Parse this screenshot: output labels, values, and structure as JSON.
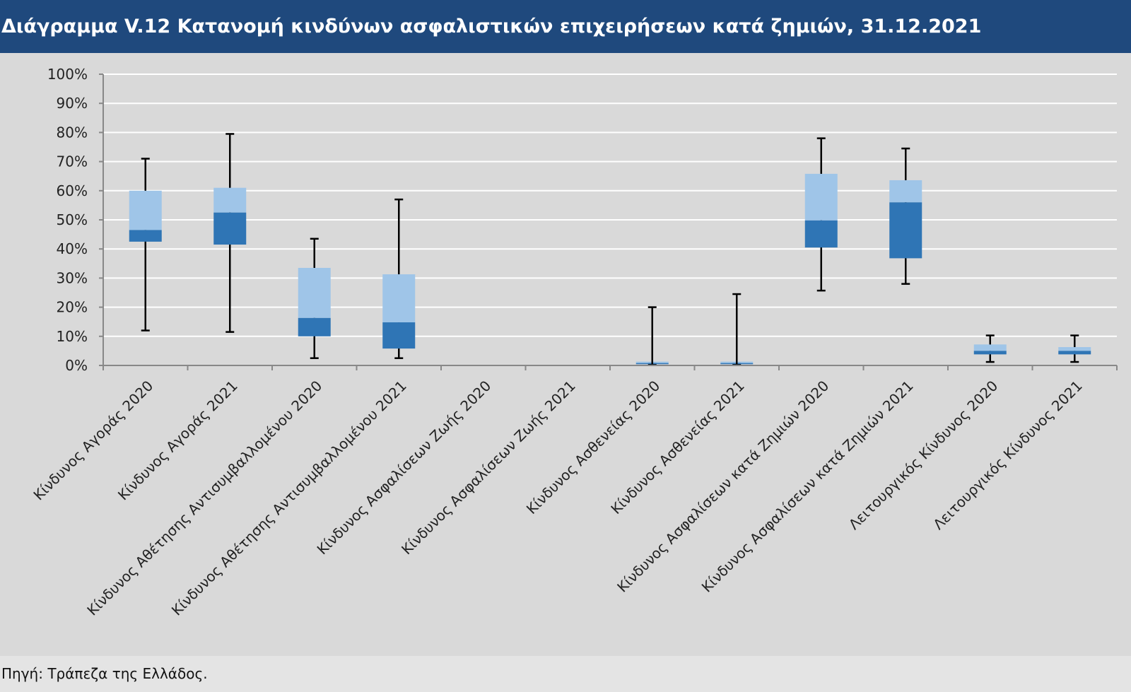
{
  "title": "Διάγραμμα V.12 Κατανομή κινδύνων ασφαλιστικών επιχειρήσεων κατά ζημιών, 31.12.2021",
  "source": "Πηγή: Τράπεζα της Ελλάδος.",
  "colors": {
    "header": "#1f497d",
    "box_upper": "#9fc5e8",
    "box_lower": "#2f75b5",
    "whisker": "#000000",
    "grid": "#ffffff",
    "background": "#d9d9d9"
  },
  "chart_data": {
    "type": "boxplot",
    "title": "Διάγραμμα V.12 Κατανομή κινδύνων ασφαλιστικών επιχειρήσεων κατά ζημιών, 31.12.2021",
    "ylim": [
      0,
      100
    ],
    "yticks": [
      "0%",
      "10%",
      "20%",
      "30%",
      "40%",
      "50%",
      "60%",
      "70%",
      "80%",
      "90%",
      "100%"
    ],
    "grid": true,
    "categories": [
      "Κίνδυνος Αγοράς  2020",
      "Κίνδυνος Αγοράς 2021",
      "Κίνδυνος Αθέτησης Αντισυμβαλλομένου 2020",
      "Κίνδυνος Αθέτησης Αντισυμβαλλομένου 2021",
      "Κίνδυνος Ασφαλίσεων Ζωής 2020",
      "Κίνδυνος Ασφαλίσεων Ζωής 2021",
      "Κίνδυνος Ασθενείας 2020",
      "Κίνδυνος Ασθενείας 2021",
      "Κίνδυνος Ασφαλίσεων κατά Ζημιών 2020",
      "Κίνδυνος Ασφαλίσεων κατά Ζημιών 2021",
      "Λειτουργικός Κίνδυνος 2020",
      "Λειτουργικός Κίνδυνος 2021"
    ],
    "boxes": [
      {
        "min": 12,
        "q1": 42.5,
        "median": 46.5,
        "q3": 60,
        "max": 71
      },
      {
        "min": 11.5,
        "q1": 41.5,
        "median": 52.5,
        "q3": 61,
        "max": 79.5
      },
      {
        "min": 2.5,
        "q1": 10,
        "median": 16.3,
        "q3": 33.5,
        "max": 43.5
      },
      {
        "min": 2.5,
        "q1": 5.8,
        "median": 14.8,
        "q3": 31.3,
        "max": 57
      },
      null,
      null,
      {
        "min": 0.5,
        "q1": 0.6,
        "median": 0.8,
        "q3": 1.3,
        "max": 20
      },
      {
        "min": 0.5,
        "q1": 0.6,
        "median": 0.8,
        "q3": 1.3,
        "max": 24.5
      },
      {
        "min": 25.7,
        "q1": 40.5,
        "median": 49.8,
        "q3": 65.8,
        "max": 78
      },
      {
        "min": 28,
        "q1": 36.8,
        "median": 56,
        "q3": 63.6,
        "max": 74.5
      },
      {
        "min": 1.2,
        "q1": 3.8,
        "median": 5,
        "q3": 7.2,
        "max": 10.3
      },
      {
        "min": 1.2,
        "q1": 3.8,
        "median": 5,
        "q3": 6.3,
        "max": 10.3
      }
    ]
  }
}
